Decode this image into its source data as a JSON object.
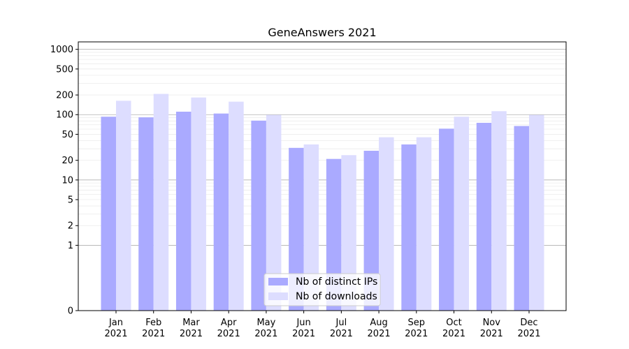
{
  "chart_data": {
    "type": "bar",
    "title": "GeneAnswers 2021",
    "xlabel": "",
    "ylabel": "",
    "yscale": "symlog",
    "ylim": [
      0,
      1300
    ],
    "grid": true,
    "legend_placement": "lower-center",
    "categories": [
      {
        "month": "Jan",
        "year": "2021"
      },
      {
        "month": "Feb",
        "year": "2021"
      },
      {
        "month": "Mar",
        "year": "2021"
      },
      {
        "month": "Apr",
        "year": "2021"
      },
      {
        "month": "May",
        "year": "2021"
      },
      {
        "month": "Jun",
        "year": "2021"
      },
      {
        "month": "Jul",
        "year": "2021"
      },
      {
        "month": "Aug",
        "year": "2021"
      },
      {
        "month": "Sep",
        "year": "2021"
      },
      {
        "month": "Oct",
        "year": "2021"
      },
      {
        "month": "Nov",
        "year": "2021"
      },
      {
        "month": "Dec",
        "year": "2021"
      }
    ],
    "yticks": [
      {
        "value": 0,
        "label": "0"
      },
      {
        "value": 1,
        "label": "1"
      },
      {
        "value": 2,
        "label": "2"
      },
      {
        "value": 5,
        "label": "5"
      },
      {
        "value": 10,
        "label": "10"
      },
      {
        "value": 20,
        "label": "20"
      },
      {
        "value": 50,
        "label": "50"
      },
      {
        "value": 100,
        "label": "100"
      },
      {
        "value": 200,
        "label": "200"
      },
      {
        "value": 500,
        "label": "500"
      },
      {
        "value": 1000,
        "label": "1000"
      }
    ],
    "series": [
      {
        "name": "Nb of distinct IPs",
        "color": "#aaaaff",
        "values": [
          93,
          91,
          111,
          104,
          81,
          31,
          21,
          28,
          35,
          61,
          75,
          67
        ]
      },
      {
        "name": "Nb of downloads",
        "color": "#ddddff",
        "values": [
          163,
          208,
          183,
          158,
          99,
          35,
          24,
          45,
          45,
          93,
          113,
          99
        ]
      }
    ]
  }
}
